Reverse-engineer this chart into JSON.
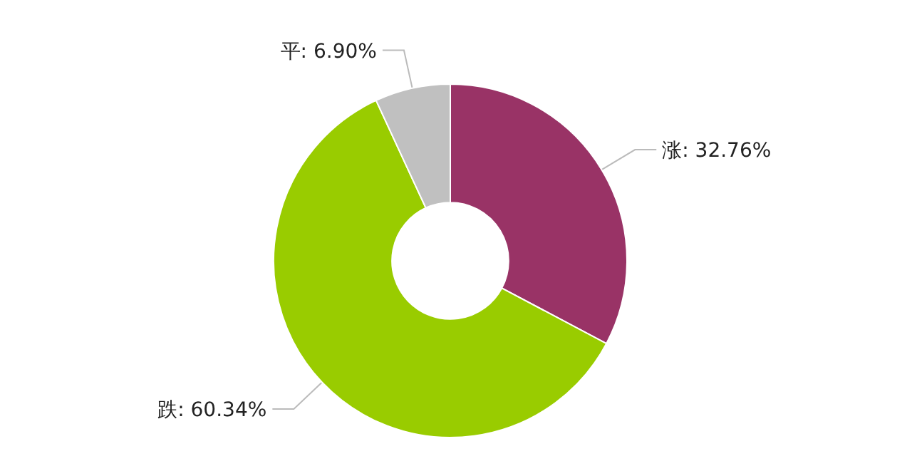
{
  "chart_data": {
    "type": "donut",
    "categories": [
      "涨",
      "跌",
      "平"
    ],
    "values": [
      32.76,
      60.34,
      6.9
    ],
    "value_labels": [
      "32.76%",
      "60.34%",
      "6.90%"
    ],
    "colors": [
      "#993366",
      "#99cc00",
      "#c0c0c0"
    ]
  }
}
